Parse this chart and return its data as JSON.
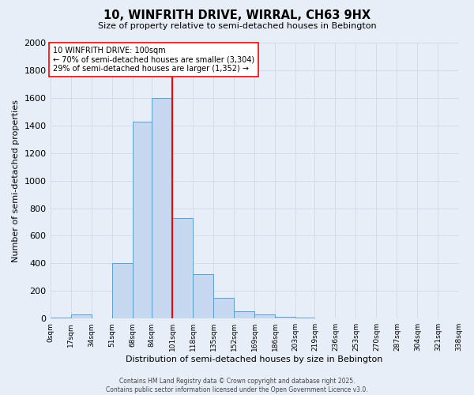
{
  "title1": "10, WINFRITH DRIVE, WIRRAL, CH63 9HX",
  "title2": "Size of property relative to semi-detached houses in Bebington",
  "xlabel": "Distribution of semi-detached houses by size in Bebington",
  "ylabel": "Number of semi-detached properties",
  "bar_color": "#c5d8f0",
  "bar_edge_color": "#5a9fd4",
  "bin_edges": [
    0,
    17,
    34,
    51,
    68,
    84,
    101,
    118,
    135,
    152,
    169,
    186,
    203,
    219,
    236,
    253,
    270,
    287,
    304,
    321,
    338
  ],
  "bin_labels": [
    "0sqm",
    "17sqm",
    "34sqm",
    "51sqm",
    "68sqm",
    "84sqm",
    "101sqm",
    "118sqm",
    "135sqm",
    "152sqm",
    "169sqm",
    "186sqm",
    "203sqm",
    "219sqm",
    "236sqm",
    "253sqm",
    "270sqm",
    "287sqm",
    "304sqm",
    "321sqm",
    "338sqm"
  ],
  "counts": [
    5,
    30,
    0,
    400,
    1430,
    1600,
    730,
    320,
    150,
    55,
    30,
    15,
    5,
    2,
    1,
    1,
    0,
    0,
    0,
    0
  ],
  "red_line_x": 101,
  "ylim": [
    0,
    2000
  ],
  "yticks": [
    0,
    200,
    400,
    600,
    800,
    1000,
    1200,
    1400,
    1600,
    1800,
    2000
  ],
  "annotation_line1": "10 WINFRITH DRIVE: 100sqm",
  "annotation_line2": "← 70% of semi-detached houses are smaller (3,304)",
  "annotation_line3": "29% of semi-detached houses are larger (1,352) →",
  "background_color": "#e8eef8",
  "grid_color": "#d0d8e8",
  "footer_line1": "Contains HM Land Registry data © Crown copyright and database right 2025.",
  "footer_line2": "Contains public sector information licensed under the Open Government Licence v3.0."
}
